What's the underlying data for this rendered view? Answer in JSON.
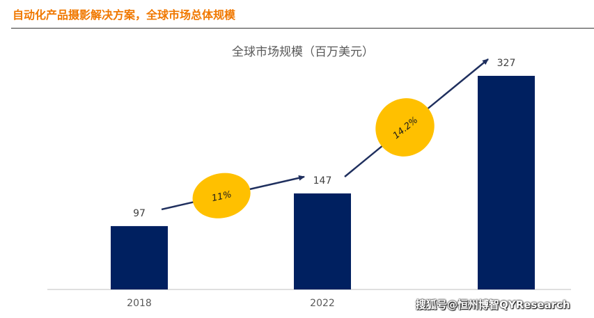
{
  "header": {
    "title": "自动化产品摄影解决方案，全球市场总体规模"
  },
  "chart_data": {
    "type": "bar",
    "title": "全球市场规模（百万美元）",
    "categories": [
      "2018",
      "2022",
      ""
    ],
    "values": [
      97,
      147,
      327
    ],
    "data_labels": [
      "97",
      "147",
      "327"
    ],
    "ylim": [
      0,
      360
    ],
    "grid": false,
    "bar_color": "#002060",
    "annotations": [
      {
        "text": "11%",
        "from": 0,
        "to": 1,
        "bubble_color": "#ffc000"
      },
      {
        "text": "14.2%",
        "from": 1,
        "to": 2,
        "bubble_color": "#ffc000"
      }
    ],
    "arrow_color": "#1f2f5e"
  },
  "watermark": "搜狐号@恒州博智QYResearch",
  "colors": {
    "title_orange": "#f07800",
    "bar_navy": "#002060",
    "bubble_gold": "#ffc000"
  }
}
